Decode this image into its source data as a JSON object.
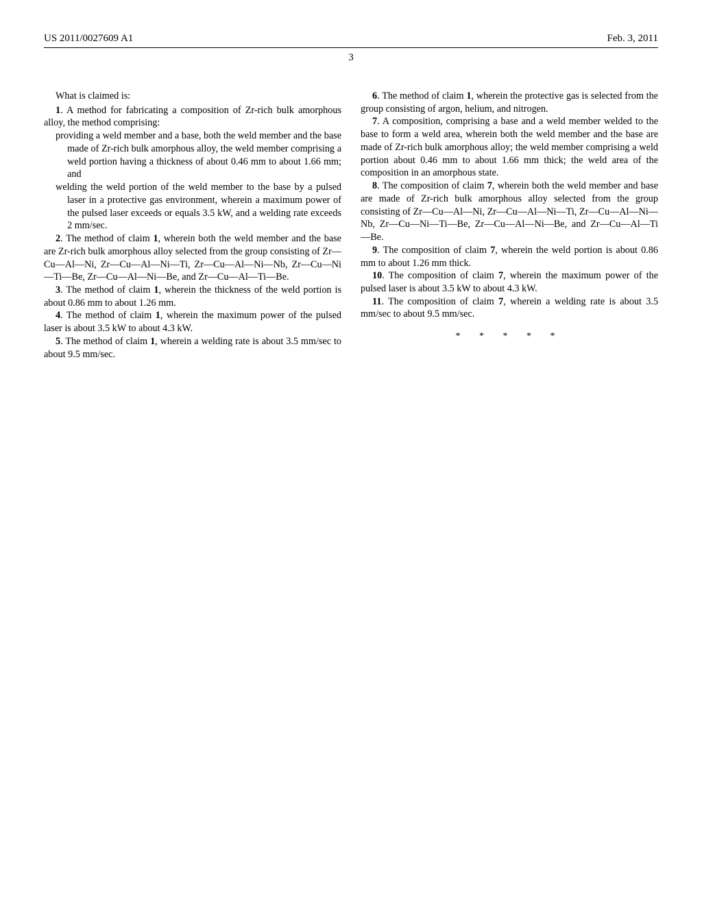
{
  "header": {
    "left": "US 2011/0027609 A1",
    "right": "Feb. 3, 2011"
  },
  "page_number": "3",
  "left_column": {
    "lead_in": "What is claimed is:",
    "c1_open": "1",
    "c1_open_text": ". A method for fabricating a composition of Zr-rich bulk amorphous alloy, the method comprising:",
    "c1_p1": "providing a weld member and a base, both the weld member and the base made of Zr-rich bulk amorphous alloy, the weld member comprising a weld portion having a thickness of about 0.46 mm to about 1.66 mm; and",
    "c1_p2": "welding the weld portion of the weld member to the base by a pulsed laser in a protective gas environment, wherein a maximum power of the pulsed laser exceeds or equals 3.5 kW, and a welding rate exceeds 2 mm/sec.",
    "c2_num": "2",
    "c2_mid": ". The method of claim ",
    "c2_ref": "1",
    "c2_text": ", wherein both the weld member and the base are Zr-rich bulk amorphous alloy selected from the group consisting of Zr—Cu—Al—Ni, Zr—Cu—Al—Ni—Ti, Zr—Cu—Al—Ni—Nb, Zr—Cu—Ni—Ti—Be, Zr—Cu—Al—Ni—Be, and Zr—Cu—Al—Ti—Be.",
    "c3_num": "3",
    "c3_mid": ". The method of claim ",
    "c3_ref": "1",
    "c3_text": ", wherein the thickness of the weld portion is about 0.86 mm to about 1.26 mm.",
    "c4_num": "4",
    "c4_mid": ". The method of claim ",
    "c4_ref": "1",
    "c4_text": ", wherein the maximum power of the pulsed laser is about 3.5 kW to about 4.3 kW.",
    "c5_num": "5",
    "c5_mid": ". The method of claim ",
    "c5_ref": "1",
    "c5_text": ", wherein a welding rate is about 3.5 mm/sec to about 9.5 mm/sec."
  },
  "right_column": {
    "c6_num": "6",
    "c6_mid": ". The method of claim ",
    "c6_ref": "1",
    "c6_text": ", wherein the protective gas is selected from the group consisting of argon, helium, and nitrogen.",
    "c7_num": "7",
    "c7_text": ". A composition, comprising a base and a weld member welded to the base to form a weld area, wherein both the weld member and the base are made of Zr-rich bulk amorphous alloy; the weld member comprising a weld portion about 0.46 mm to about 1.66 mm thick; the weld area of the composition in an amorphous state.",
    "c8_num": "8",
    "c8_mid": ". The composition of claim ",
    "c8_ref": "7",
    "c8_text": ", wherein both the weld member and base are made of Zr-rich bulk amorphous alloy selected from the group consisting of Zr—Cu—Al—Ni, Zr—Cu—Al—Ni—Ti, Zr—Cu—Al—Ni—Nb, Zr—Cu—Ni—Ti—Be, Zr—Cu—Al—Ni—Be, and Zr—Cu—Al—Ti—Be.",
    "c9_num": "9",
    "c9_mid": ". The composition of claim ",
    "c9_ref": "7",
    "c9_text": ", wherein the weld portion is about 0.86 mm to about 1.26 mm thick.",
    "c10_num": "10",
    "c10_mid": ". The composition of claim ",
    "c10_ref": "7",
    "c10_text": ", wherein the maximum power of the pulsed laser is about 3.5 kW to about 4.3 kW.",
    "c11_num": "11",
    "c11_mid": ". The composition of claim ",
    "c11_ref": "7",
    "c11_text": ", wherein a welding rate is about 3.5 mm/sec to about 9.5 mm/sec.",
    "asterisks": "* * * * *"
  }
}
